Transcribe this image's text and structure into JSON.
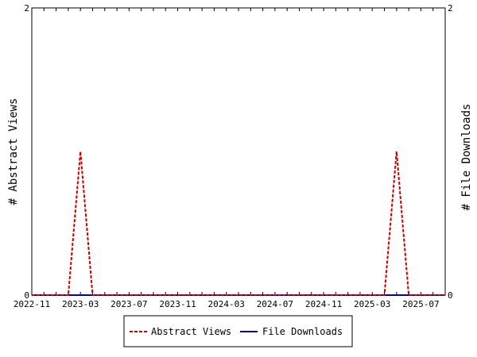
{
  "chart_data": {
    "type": "line",
    "title": "",
    "xlabel": "",
    "ylabel_left": "# Abstract Views",
    "ylabel_right": "# File Downloads",
    "x": [
      "2022-11",
      "2022-12",
      "2023-01",
      "2023-02",
      "2023-03",
      "2023-04",
      "2023-05",
      "2023-06",
      "2023-07",
      "2023-08",
      "2023-09",
      "2023-10",
      "2023-11",
      "2023-12",
      "2024-01",
      "2024-02",
      "2024-03",
      "2024-04",
      "2024-05",
      "2024-06",
      "2024-07",
      "2024-08",
      "2024-09",
      "2024-10",
      "2024-11",
      "2024-12",
      "2025-01",
      "2025-02",
      "2025-03",
      "2025-04",
      "2025-05",
      "2025-06",
      "2025-07",
      "2025-08",
      "2025-09"
    ],
    "x_tick_labels": [
      "2022-11",
      "2023-03",
      "2023-07",
      "2023-11",
      "2024-03",
      "2024-07",
      "2024-11",
      "2025-03",
      "2025-07"
    ],
    "ylim_left": [
      0,
      2
    ],
    "ylim_right": [
      0,
      2
    ],
    "y_tick_labels_left": [
      "0",
      "2"
    ],
    "y_tick_labels_right": [
      "0",
      "2"
    ],
    "grid": false,
    "legend_position": "bottom-center",
    "series": [
      {
        "name": "Abstract Views",
        "axis": "left",
        "color": "#cc0000",
        "style": "dashed",
        "values": [
          0,
          0,
          0,
          0,
          1,
          0,
          0,
          0,
          0,
          0,
          0,
          0,
          0,
          0,
          0,
          0,
          0,
          0,
          0,
          0,
          0,
          0,
          0,
          0,
          0,
          0,
          0,
          0,
          0,
          0,
          1,
          0,
          0,
          0,
          0
        ]
      },
      {
        "name": "File Downloads",
        "axis": "right",
        "color": "#000099",
        "style": "solid",
        "values": [
          0,
          0,
          0,
          0,
          0,
          0,
          0,
          0,
          0,
          0,
          0,
          0,
          0,
          0,
          0,
          0,
          0,
          0,
          0,
          0,
          0,
          0,
          0,
          0,
          0,
          0,
          0,
          0,
          0,
          0,
          0,
          0,
          0,
          0,
          0
        ]
      }
    ]
  }
}
